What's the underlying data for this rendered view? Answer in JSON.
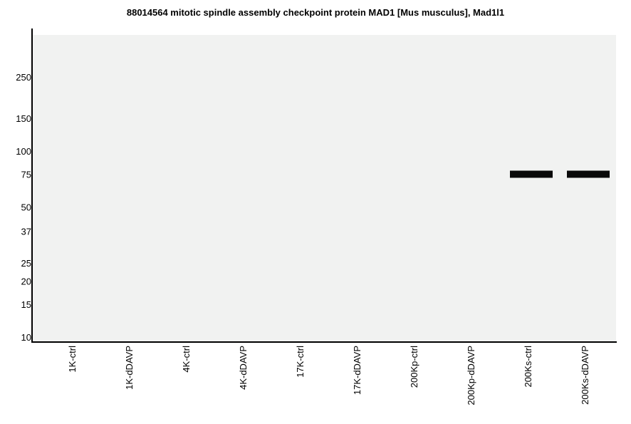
{
  "chart_data": {
    "type": "bar",
    "title": "88014564 mitotic spindle assembly checkpoint protein MAD1 [Mus musculus], Mad1l1",
    "xlabel": "",
    "ylabel": "",
    "y_scale": "log",
    "ylim": [
      9.5,
      420
    ],
    "y_ticks": [
      250,
      150,
      100,
      75,
      50,
      37,
      25,
      20,
      15,
      10
    ],
    "y_tick_labels": [
      "250",
      "150",
      "100",
      "75",
      "50",
      "37",
      "25",
      "20",
      "15",
      "10"
    ],
    "categories": [
      "1K-ctrl",
      "1K-dDAVP",
      "4K-ctrl",
      "4K-dDAVP",
      "17K-ctrl",
      "17K-dDAVP",
      "200Kp-ctrl",
      "200Kp-dDAVP",
      "200Ks-ctrl",
      "200Ks-dDAVP"
    ],
    "bands": [
      {
        "lane": "200Ks-ctrl",
        "mw": 75
      },
      {
        "lane": "200Ks-dDAVP",
        "mw": 75
      }
    ],
    "grid": false,
    "legend": "none",
    "colors": {
      "background": "#ffffff",
      "plot_area": "#f1f2f1",
      "axis": "#000000",
      "band": "#0a0a0a"
    }
  }
}
